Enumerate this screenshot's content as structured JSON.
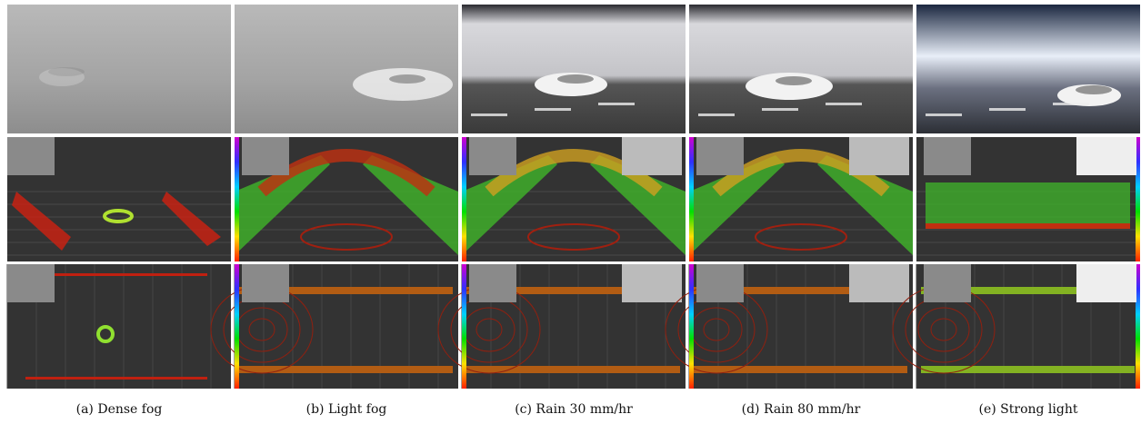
{
  "captions": [
    "(a) Dense fog",
    "(b) Light fog",
    "(c) Rain 30 mm/hr",
    "(d) Rain 80 mm/hr",
    "(e) Strong light"
  ]
}
